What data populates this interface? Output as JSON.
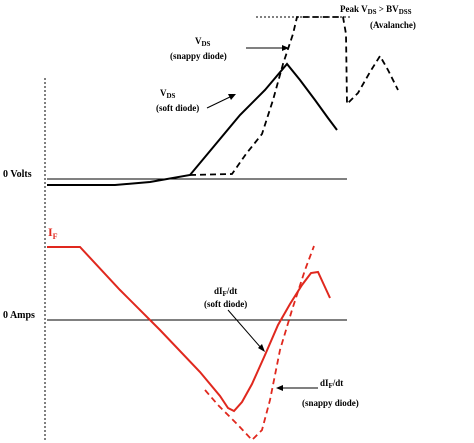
{
  "labels": {
    "peak_line1_a": "Peak V",
    "peak_line1_sub1": "DS",
    "peak_line1_b": " > BV",
    "peak_line1_sub2": "DSS",
    "peak_line2": "(Avalanche)",
    "vds_snappy_main": "V",
    "vds_snappy_sub": "DS",
    "vds_snappy_note": "(snappy diode)",
    "vds_soft_main": "V",
    "vds_soft_sub": "DS",
    "vds_soft_note": "(soft diode)",
    "zero_volts": "0  Volts",
    "if_main": "I",
    "if_sub": "F",
    "zero_amps": "0 Amps",
    "dif_soft_a": "dI",
    "dif_soft_sub": "F",
    "dif_soft_b": "/dt",
    "dif_soft_note": "(soft diode)",
    "dif_snappy_a": "dI",
    "dif_snappy_sub": "F",
    "dif_snappy_b": "/dt",
    "dif_snappy_note": "(snappy diode)"
  },
  "colors": {
    "voltage_trace": "#000000",
    "current_trace": "#e0281e",
    "axis": "#000000"
  }
}
